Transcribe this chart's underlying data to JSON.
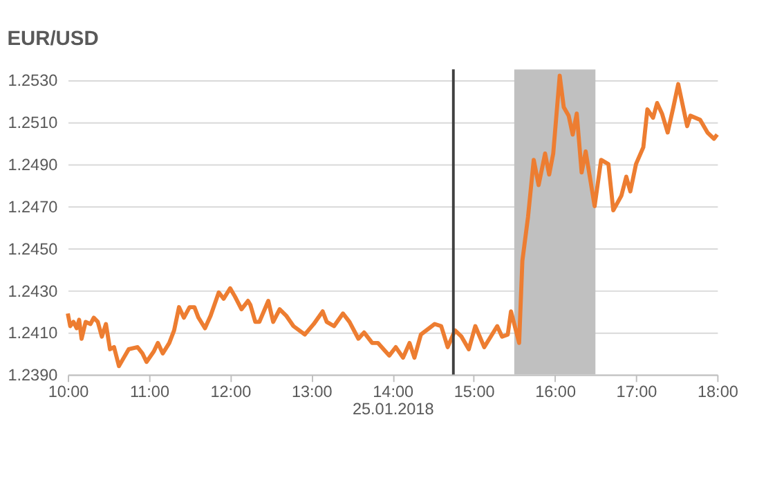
{
  "chart_data": {
    "type": "line",
    "title": "EUR/USD",
    "xlabel": "25.01.2018",
    "x": [
      10.0,
      10.03,
      10.07,
      10.11,
      10.14,
      10.17,
      10.22,
      10.28,
      10.32,
      10.37,
      10.42,
      10.47,
      10.52,
      10.57,
      10.63,
      10.69,
      10.75,
      10.86,
      10.92,
      10.97,
      11.06,
      11.11,
      11.17,
      11.25,
      11.31,
      11.37,
      11.43,
      11.5,
      11.56,
      11.61,
      11.69,
      11.76,
      11.86,
      11.92,
      12.0,
      12.06,
      12.14,
      12.22,
      12.25,
      12.31,
      12.36,
      12.47,
      12.53,
      12.61,
      12.69,
      12.78,
      12.92,
      13.03,
      13.14,
      13.19,
      13.28,
      13.39,
      13.47,
      13.58,
      13.65,
      13.75,
      13.82,
      13.96,
      14.04,
      14.13,
      14.21,
      14.27,
      14.35,
      14.52,
      14.6,
      14.68,
      14.77,
      14.85,
      14.94,
      15.02,
      15.13,
      15.29,
      15.35,
      15.42,
      15.46,
      15.56,
      15.6,
      15.67,
      15.74,
      15.8,
      15.88,
      15.93,
      15.98,
      16.06,
      16.11,
      16.17,
      16.22,
      16.27,
      16.33,
      16.38,
      16.49,
      16.57,
      16.66,
      16.72,
      16.82,
      16.88,
      16.93,
      17.0,
      17.09,
      17.14,
      17.21,
      17.26,
      17.32,
      17.39,
      17.46,
      17.52,
      17.63,
      17.67,
      17.79,
      17.88,
      17.96,
      18.0
    ],
    "series": [
      {
        "color": "#ed7d31",
        "values": [
          1.2419,
          1.2413,
          1.2415,
          1.2412,
          1.2416,
          1.2407,
          1.2415,
          1.2414,
          1.2417,
          1.2415,
          1.2408,
          1.2414,
          1.2402,
          1.2403,
          1.2394,
          1.2398,
          1.2402,
          1.2403,
          1.24,
          1.2396,
          1.2401,
          1.2405,
          1.24,
          1.2405,
          1.2411,
          1.2422,
          1.2417,
          1.2422,
          1.2422,
          1.2417,
          1.2412,
          1.2418,
          1.2429,
          1.2426,
          1.2431,
          1.2427,
          1.2421,
          1.2425,
          1.2423,
          1.2415,
          1.2415,
          1.2425,
          1.2415,
          1.2421,
          1.2418,
          1.2413,
          1.2409,
          1.2414,
          1.242,
          1.2415,
          1.2413,
          1.2419,
          1.2415,
          1.2407,
          1.241,
          1.2405,
          1.2405,
          1.2399,
          1.2403,
          1.2398,
          1.2405,
          1.2398,
          1.2409,
          1.2414,
          1.2413,
          1.2403,
          1.2411,
          1.2408,
          1.2402,
          1.2413,
          1.2403,
          1.2413,
          1.2408,
          1.2409,
          1.242,
          1.2405,
          1.2444,
          1.2465,
          1.2492,
          1.248,
          1.2495,
          1.2485,
          1.2495,
          1.2532,
          1.2517,
          1.2513,
          1.2504,
          1.2514,
          1.2486,
          1.2496,
          1.247,
          1.2492,
          1.249,
          1.2468,
          1.2475,
          1.2484,
          1.2477,
          1.249,
          1.2498,
          1.2516,
          1.2512,
          1.2519,
          1.2514,
          1.2505,
          1.2517,
          1.2528,
          1.2508,
          1.2513,
          1.2511,
          1.2505,
          1.2502,
          1.2504
        ]
      }
    ],
    "xlim": [
      10,
      18
    ],
    "xticks": [
      {
        "value": 10,
        "label": "10:00"
      },
      {
        "value": 11,
        "label": "11:00"
      },
      {
        "value": 12,
        "label": "12:00"
      },
      {
        "value": 13,
        "label": "13:00"
      },
      {
        "value": 14,
        "label": "14:00"
      },
      {
        "value": 15,
        "label": "15:00"
      },
      {
        "value": 16,
        "label": "16:00"
      },
      {
        "value": 17,
        "label": "17:00"
      },
      {
        "value": 18,
        "label": "18:00"
      }
    ],
    "ylim": [
      1.239,
      1.2535
    ],
    "yticks": [
      {
        "value": 1.239,
        "label": "1.2390"
      },
      {
        "value": 1.241,
        "label": "1.2410"
      },
      {
        "value": 1.243,
        "label": "1.2430"
      },
      {
        "value": 1.245,
        "label": "1.2450"
      },
      {
        "value": 1.247,
        "label": "1.2470"
      },
      {
        "value": 1.249,
        "label": "1.2490"
      },
      {
        "value": 1.251,
        "label": "1.2510"
      },
      {
        "value": 1.253,
        "label": "1.2530"
      }
    ],
    "grid": "y",
    "ref_lines": [
      {
        "axis": "x",
        "value": 14.75,
        "color": "#404040"
      }
    ],
    "bands": [
      {
        "axis": "x",
        "from": 15.5,
        "to": 16.5,
        "color": "#c0c0c0"
      }
    ]
  }
}
